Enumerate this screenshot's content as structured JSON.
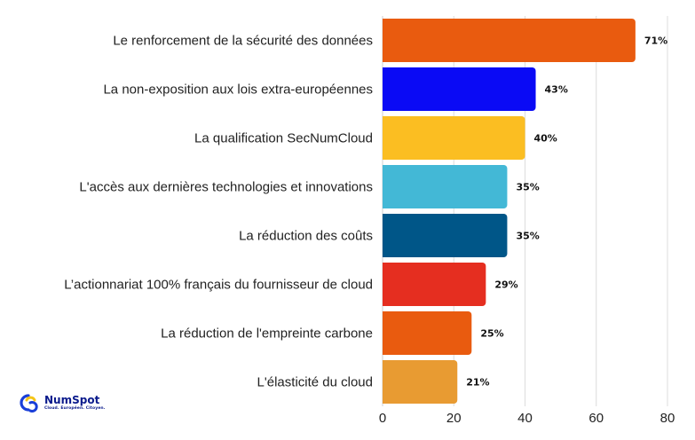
{
  "chart_data": {
    "type": "bar",
    "orientation": "horizontal",
    "categories": [
      "Le renforcement de la sécurité des données",
      "La non-exposition aux lois extra-européennes",
      "La qualification SecNumCloud",
      "L'accès aux dernières technologies et innovations",
      "La réduction des coûts",
      "L’actionnariat 100% français du fournisseur de cloud",
      "La réduction de l'empreinte carbone",
      "L'élasticité du cloud"
    ],
    "values": [
      71,
      43,
      40,
      35,
      35,
      29,
      25,
      21
    ],
    "value_labels": [
      "71%",
      "43%",
      "40%",
      "35%",
      "35%",
      "29%",
      "25%",
      "21%"
    ],
    "colors": [
      "#E95B0F",
      "#0A0AF5",
      "#FBBE22",
      "#43B8D6",
      "#005688",
      "#E52E20",
      "#E95B0F",
      "#E89B32"
    ],
    "x_ticks": [
      "0",
      "20",
      "40",
      "60",
      "80"
    ],
    "xlim": [
      0,
      80
    ],
    "grid": "vertical",
    "title": "",
    "xlabel": "",
    "ylabel": ""
  },
  "logo": {
    "name": "NumSpot",
    "tagline": "Cloud. Européen. Citoyen.",
    "icon": "numspot-logo-icon",
    "color": "#0A1A8C"
  }
}
